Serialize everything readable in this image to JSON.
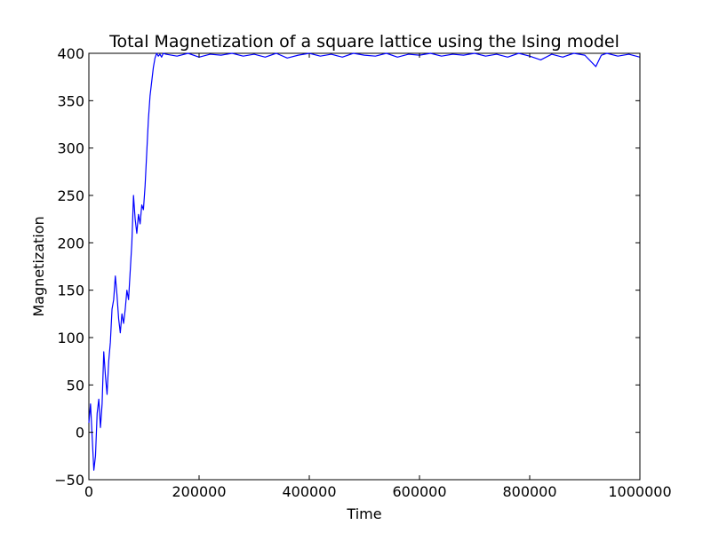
{
  "chart_data": {
    "type": "line",
    "title": "Total Magnetization of a square lattice using the Ising model",
    "xlabel": "Time",
    "ylabel": "Magnetization",
    "xlim": [
      0,
      1000000
    ],
    "ylim": [
      -50,
      400
    ],
    "xticks": [
      0,
      200000,
      400000,
      600000,
      800000,
      1000000
    ],
    "xtick_labels": [
      "0",
      "200000",
      "400000",
      "600000",
      "800000",
      "1000000"
    ],
    "yticks": [
      -50,
      0,
      50,
      100,
      150,
      200,
      250,
      300,
      350,
      400
    ],
    "ytick_labels": [
      "−50",
      "0",
      "50",
      "100",
      "150",
      "200",
      "250",
      "300",
      "350",
      "400"
    ],
    "grid": false,
    "legend": false,
    "series": [
      {
        "color": "#0000ff",
        "x": [
          0,
          3000,
          6000,
          9000,
          12000,
          15000,
          18000,
          21000,
          24000,
          27000,
          30000,
          33000,
          36000,
          39000,
          42000,
          45000,
          48000,
          51000,
          54000,
          57000,
          60000,
          63000,
          66000,
          69000,
          72000,
          75000,
          78000,
          81000,
          84000,
          87000,
          90000,
          93000,
          96000,
          99000,
          102000,
          105000,
          108000,
          111000,
          114000,
          117000,
          120000,
          123000,
          126000,
          129000,
          132000,
          135000,
          140000,
          160000,
          180000,
          200000,
          220000,
          240000,
          260000,
          280000,
          300000,
          320000,
          340000,
          360000,
          380000,
          400000,
          420000,
          440000,
          460000,
          480000,
          500000,
          520000,
          540000,
          560000,
          580000,
          600000,
          620000,
          640000,
          660000,
          680000,
          700000,
          720000,
          740000,
          760000,
          780000,
          800000,
          820000,
          840000,
          860000,
          880000,
          900000,
          920000,
          930000,
          940000,
          960000,
          980000,
          1000000
        ],
        "values": [
          10,
          30,
          -5,
          -40,
          -25,
          20,
          35,
          5,
          30,
          85,
          60,
          40,
          75,
          95,
          130,
          140,
          165,
          145,
          120,
          105,
          125,
          115,
          130,
          150,
          140,
          170,
          200,
          250,
          225,
          210,
          230,
          220,
          240,
          235,
          260,
          295,
          330,
          355,
          370,
          385,
          395,
          400,
          397,
          399,
          396,
          400,
          399,
          397,
          400,
          396,
          399,
          398,
          400,
          397,
          399,
          396,
          400,
          395,
          398,
          400,
          397,
          399,
          396,
          400,
          398,
          397,
          400,
          396,
          399,
          398,
          400,
          397,
          399,
          398,
          400,
          397,
          399,
          396,
          400,
          397,
          393,
          399,
          396,
          400,
          398,
          386,
          398,
          400,
          397,
          399,
          396
        ]
      }
    ]
  }
}
